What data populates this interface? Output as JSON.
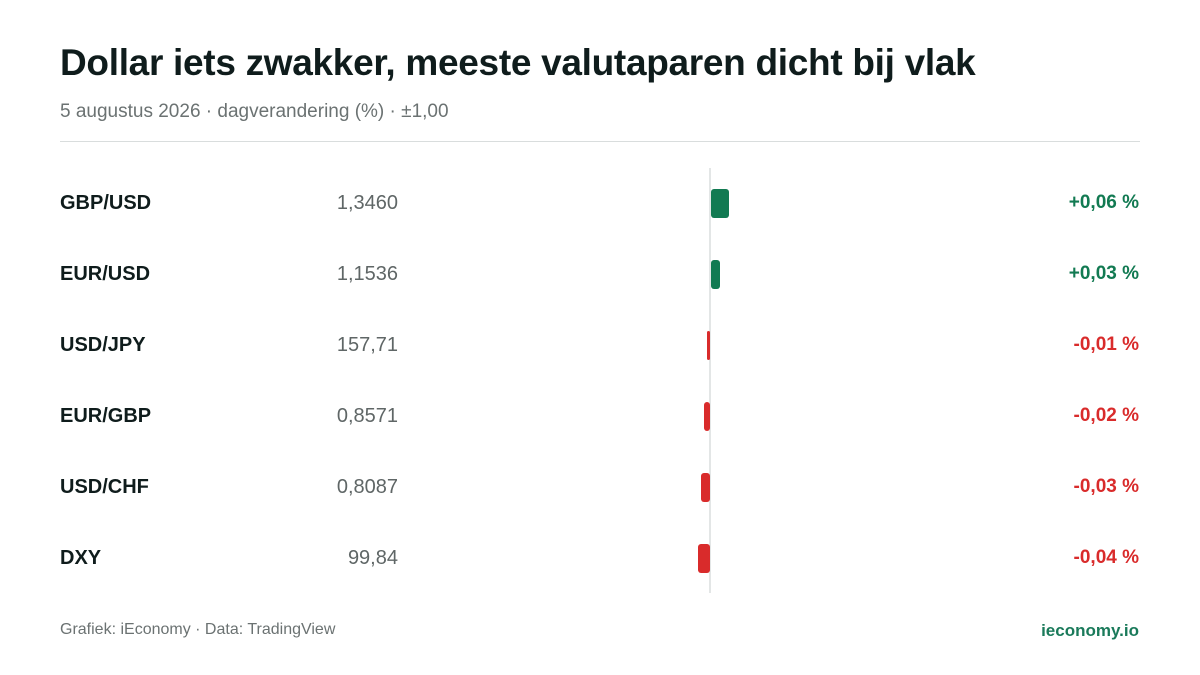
{
  "title": "Dollar iets zwakker, meeste valutaparen dicht bij vlak",
  "subtitle": "5 augustus 2026 · dagverandering (%) · ±1,00",
  "footer": {
    "source": "Grafiek: iEconomy · Data: TradingView",
    "brand": "ieconomy.io"
  },
  "colors": {
    "positive": "#127a52",
    "negative": "#d92b2b",
    "brand": "#1a7a5a"
  },
  "chart_data": {
    "type": "bar",
    "orientation": "horizontal",
    "title": "Dollar iets zwakker, meeste valutaparen dicht bij vlak",
    "subtitle": "5 augustus 2026 · dagverandering (%) · ±1,00",
    "grid": false,
    "categories": [
      "GBP/USD",
      "EUR/USD",
      "USD/JPY",
      "EUR/GBP",
      "USD/CHF",
      "DXY"
    ],
    "rates": [
      "1,3460",
      "1,1536",
      "157,71",
      "0,8571",
      "0,8087",
      "99,84"
    ],
    "values": [
      0.06,
      0.03,
      -0.01,
      -0.02,
      -0.03,
      -0.04
    ],
    "value_labels": [
      "+0,06 %",
      "+0,03 %",
      "-0,01 %",
      "-0,02 %",
      "-0,03 %",
      "-0,04 %"
    ]
  }
}
